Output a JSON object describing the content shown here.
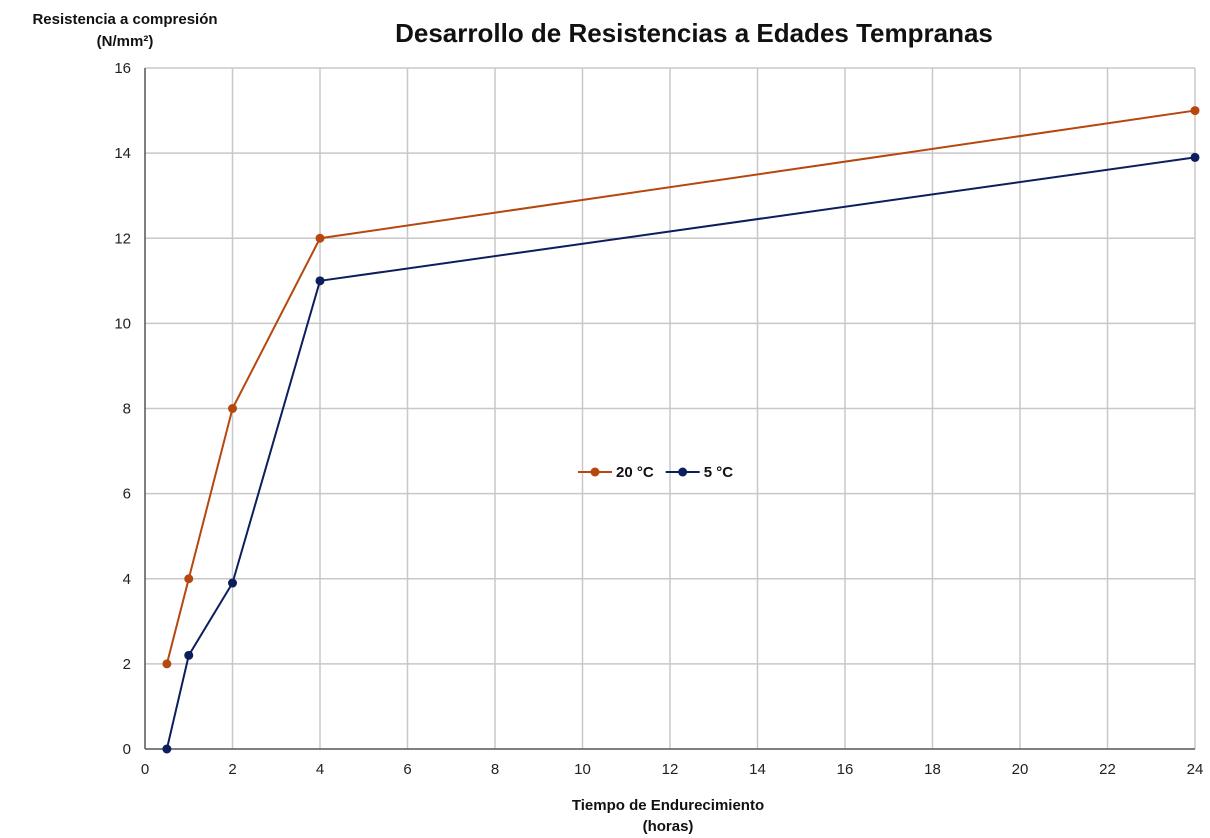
{
  "chart_data": {
    "type": "line",
    "title": "Desarrollo de Resistencias a Edades Tempranas",
    "ylabel": "Resistencia a compresión",
    "ylabel_unit": "(N/mm²)",
    "xlabel": "Tiempo de Endurecimiento",
    "xlabel_unit": "(horas)",
    "xlim": [
      0,
      24
    ],
    "ylim": [
      0,
      16
    ],
    "xticks": [
      0,
      2,
      4,
      6,
      8,
      10,
      12,
      14,
      16,
      18,
      20,
      22,
      24
    ],
    "yticks": [
      0,
      2,
      4,
      6,
      8,
      10,
      12,
      14,
      16
    ],
    "grid": true,
    "legend_position": "center",
    "series": [
      {
        "name": "20 °C",
        "color": "#b5470f",
        "x": [
          0.5,
          1,
          2,
          4,
          24
        ],
        "y": [
          2,
          4,
          8,
          12,
          15
        ]
      },
      {
        "name": "5 °C",
        "color": "#0d1e5c",
        "x": [
          0.5,
          1,
          2,
          4,
          24
        ],
        "y": [
          0,
          2.2,
          3.9,
          11,
          13.9
        ]
      }
    ]
  }
}
